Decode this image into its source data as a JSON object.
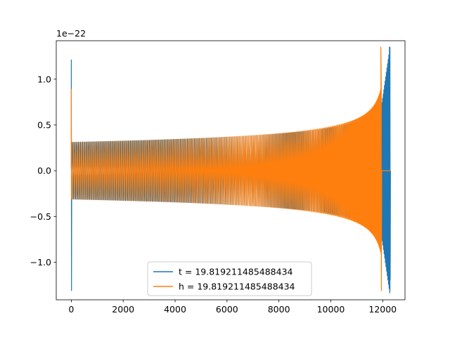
{
  "chart_data": {
    "type": "line",
    "offset_text": "1e−22",
    "xlim": [
      -580,
      12860
    ],
    "ylim": [
      -1.41,
      1.42
    ],
    "x_ticks": [
      0,
      2000,
      4000,
      6000,
      8000,
      10000,
      12000
    ],
    "x_tick_labels": [
      "0",
      "2000",
      "4000",
      "6000",
      "8000",
      "10000",
      "12000"
    ],
    "y_ticks": [
      -1.0,
      -0.5,
      0.0,
      0.5,
      1.0
    ],
    "y_tick_labels": [
      "−1.0",
      "−0.5",
      "0.0",
      "0.5",
      "1.0"
    ],
    "legend_position": "lower center",
    "series": [
      {
        "name": "t = 19.819211485488434",
        "color": "#1f77b4",
        "waveform": {
          "spike_x": 0,
          "spike_max": 1.21,
          "spike_min": -1.31,
          "envelope_start": 0.31,
          "peak": 1.35,
          "merger_x": 12280,
          "end_x": 12300,
          "ringdown_start_x": 11900,
          "ringdown_start_amp": 0.6
        }
      },
      {
        "name": "h = 19.819211485488434",
        "color": "#ff7f0e",
        "waveform": {
          "spike_x": 0,
          "spike_max": 0.89,
          "spike_min": -0.31,
          "envelope_start": 0.31,
          "peak": 1.35,
          "merger_x": 11950,
          "end_x": 12300
        }
      }
    ]
  }
}
